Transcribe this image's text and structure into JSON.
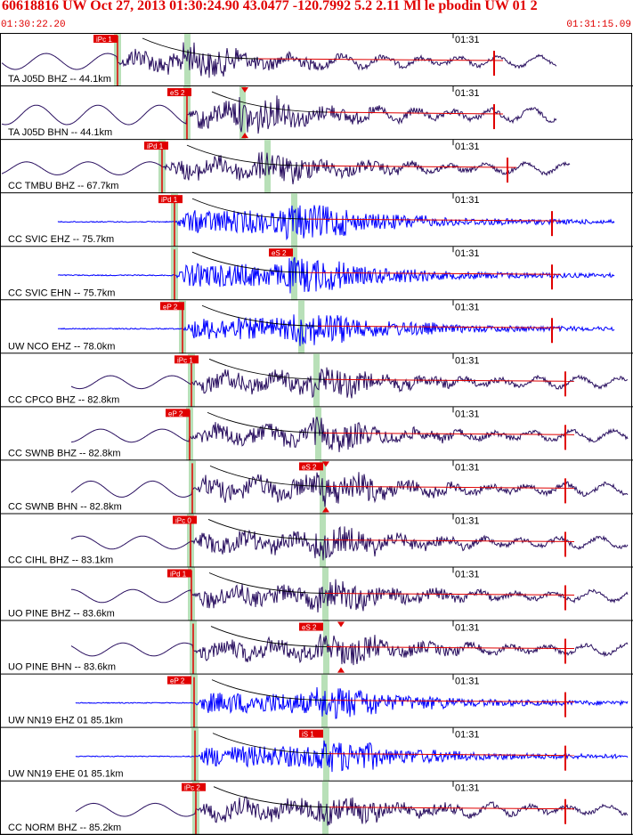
{
  "header": {
    "title": "60618816 UW Oct 27, 2013 01:30:24.90    43.0477  -120.7992   5.2 2.11 Ml le pbodin UW 01    2",
    "start_time": "01:30:22.20",
    "end_time": "01:31:15.09"
  },
  "tick_label": "01:31",
  "colors": {
    "dark_trace": "#2a1060",
    "blue_trace": "#0000ff",
    "pick": "#e00000",
    "phase_band": "#b8e0b8",
    "text": "#000000"
  },
  "traces": [
    {
      "label": "TA J05D BHZ -- 44.1km",
      "pick": "iPc 1",
      "color": "dark"
    },
    {
      "label": "TA J05D BHN -- 44.1km",
      "pick": "eS 2",
      "color": "dark"
    },
    {
      "label": "CC TMBU BHZ -- 67.7km",
      "pick": "iPd 1",
      "color": "dark"
    },
    {
      "label": "CC SVIC EHZ -- 75.7km",
      "pick": "iPd 1",
      "color": "blue"
    },
    {
      "label": "CC SVIC EHN -- 75.7km",
      "pick": "eS 2",
      "color": "blue"
    },
    {
      "label": "UW NCO EHZ -- 78.0km",
      "pick": "eP 2",
      "color": "blue"
    },
    {
      "label": "CC CPCO BHZ -- 82.8km",
      "pick": "iPc 1",
      "color": "dark"
    },
    {
      "label": "CC SWNB BHZ -- 82.8km",
      "pick": "eP 2",
      "color": "dark"
    },
    {
      "label": "CC SWNB BHN -- 82.8km",
      "pick": "eS 2",
      "color": "dark"
    },
    {
      "label": "CC CIHL BHZ -- 83.1km",
      "pick": "iPc 0",
      "color": "dark"
    },
    {
      "label": "UO PINE BHZ -- 83.6km",
      "pick": "iPd 1",
      "color": "dark"
    },
    {
      "label": "UO PINE BHN -- 83.6km",
      "pick": "eS 2",
      "color": "dark"
    },
    {
      "label": "UW NN19 EHZ 01 85.1km",
      "pick": "eP 2",
      "color": "blue"
    },
    {
      "label": "UW NN19 EHE 01 85.1km",
      "pick": "iS 1",
      "color": "blue"
    },
    {
      "label": "CC NORM BHZ -- 85.2km",
      "pick": "iPc 2",
      "color": "dark"
    }
  ]
}
